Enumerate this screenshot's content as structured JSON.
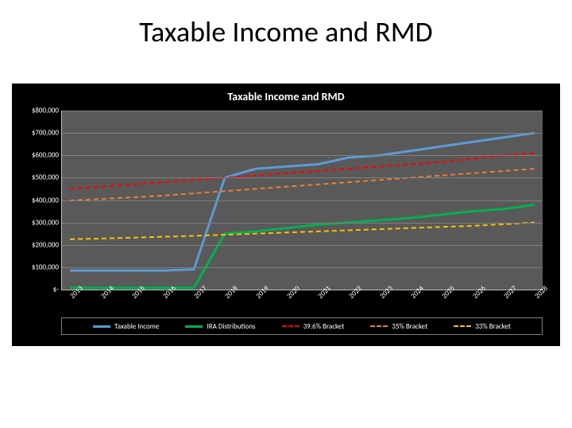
{
  "slide_title": "Taxable Income and RMD",
  "chart": {
    "type": "line",
    "title": "Taxable Income and RMD",
    "title_fontsize": 14,
    "background_color": "#000000",
    "plot_background_color": "#595959",
    "grid_color": "#808080",
    "axis_color": "#bfbfbf",
    "text_color": "#ffffff",
    "label_fontsize": 9,
    "x_categories": [
      "2013",
      "2014",
      "2015",
      "2016",
      "2017",
      "2018",
      "2019",
      "2020",
      "2021",
      "2022",
      "2023",
      "2024",
      "2025",
      "2026",
      "2027",
      "2028"
    ],
    "x_label_rotation": -45,
    "ylim": [
      0,
      800000
    ],
    "ytick_step": 100000,
    "y_tick_labels": [
      "$-",
      "$100,000",
      "$200,000",
      "$300,000",
      "$400,000",
      "$500,000",
      "$600,000",
      "$700,000",
      "$800,000"
    ],
    "series": [
      {
        "name": "Taxable Income",
        "color": "#5b9bd5",
        "line_width": 3,
        "dash": "none",
        "values": [
          85000,
          85000,
          85000,
          85000,
          90000,
          500000,
          540000,
          550000,
          560000,
          590000,
          600000,
          620000,
          640000,
          660000,
          680000,
          700000
        ]
      },
      {
        "name": "IRA Distributions",
        "color": "#00b050",
        "line_width": 3,
        "dash": "none",
        "values": [
          8000,
          8000,
          8000,
          8000,
          8000,
          250000,
          260000,
          275000,
          290000,
          300000,
          310000,
          320000,
          335000,
          350000,
          360000,
          380000
        ]
      },
      {
        "name": "39.6% Bracket",
        "color": "#ff0000",
        "line_width": 2,
        "dash": "6,4",
        "values": [
          450000,
          460000,
          470000,
          480000,
          490000,
          500000,
          510000,
          520000,
          530000,
          540000,
          550000,
          560000,
          570000,
          585000,
          600000,
          610000
        ]
      },
      {
        "name": "35% Bracket",
        "color": "#ed7d31",
        "line_width": 2,
        "dash": "6,4",
        "values": [
          398000,
          405000,
          412000,
          420000,
          430000,
          440000,
          450000,
          460000,
          470000,
          480000,
          490000,
          500000,
          510000,
          520000,
          530000,
          540000
        ]
      },
      {
        "name": "33% Bracket",
        "color": "#ffc000",
        "line_width": 2,
        "dash": "6,4",
        "values": [
          225000,
          228000,
          232000,
          236000,
          240000,
          245000,
          250000,
          255000,
          260000,
          265000,
          270000,
          275000,
          280000,
          285000,
          292000,
          300000
        ]
      }
    ],
    "legend_position": "bottom",
    "legend_border_color": "#808080"
  }
}
